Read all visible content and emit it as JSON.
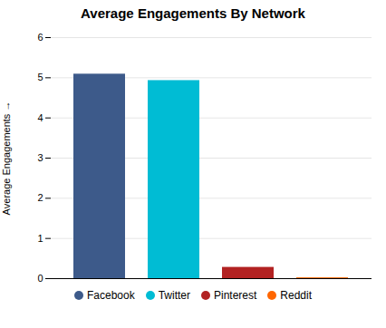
{
  "chart_data": {
    "type": "bar",
    "title": "Average Engagements By Network",
    "categories": [
      "Facebook",
      "Twitter",
      "Pinterest",
      "Reddit"
    ],
    "values": [
      5.09,
      4.93,
      0.28,
      0.02
    ],
    "colors": [
      "#3d5a8a",
      "#00bcd4",
      "#b22222",
      "#ff6600"
    ],
    "ylabel": "Average Engagements",
    "ylim": [
      0,
      6
    ],
    "yticks": [
      0,
      1,
      2,
      3,
      4,
      5,
      6
    ],
    "grid": true,
    "legend": "bottom",
    "tick_labels": "y"
  }
}
